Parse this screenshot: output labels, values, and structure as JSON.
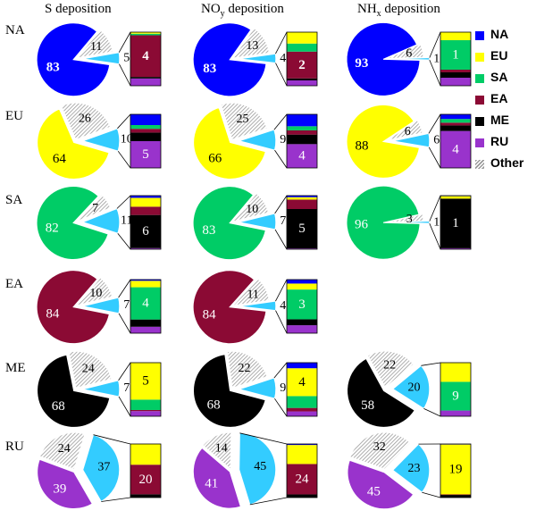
{
  "chart_data": {
    "type": "pie",
    "columns": [
      {
        "label": "S deposition",
        "main": "S",
        "sub": ""
      },
      {
        "label": "NOy deposition",
        "main": "NO",
        "sub": "y",
        "suffix": " deposition"
      },
      {
        "label": "NHx deposition",
        "main": "NH",
        "sub": "x",
        "suffix": " deposition"
      }
    ],
    "rows": [
      "NA",
      "EU",
      "SA",
      "EA",
      "ME",
      "RU"
    ],
    "colors": {
      "NA": "#0000ff",
      "EU": "#ffff00",
      "SA": "#00cc66",
      "EA": "#8b0a34",
      "ME": "#000000",
      "RU": "#9933cc",
      "Other": "hatched-gray",
      "Transport": "#33ccff"
    },
    "legend": {
      "placement": "right",
      "entries": [
        {
          "key": "NA",
          "label": "NA"
        },
        {
          "key": "EU",
          "label": "EU"
        },
        {
          "key": "SA",
          "label": "SA"
        },
        {
          "key": "EA",
          "label": "EA"
        },
        {
          "key": "ME",
          "label": "ME"
        },
        {
          "key": "RU",
          "label": "RU"
        },
        {
          "key": "Other",
          "label": "Other"
        }
      ]
    },
    "panels": [
      {
        "row": "NA",
        "col": 0,
        "domestic": 83,
        "other": 11,
        "transport": 5,
        "breakdown": [
          {
            "k": "RU",
            "v": 0.7
          },
          {
            "k": "ME",
            "v": 0.15
          },
          {
            "k": "EA",
            "v": 4
          },
          {
            "k": "SA",
            "v": 0.15
          },
          {
            "k": "EU",
            "v": 0.15
          }
        ],
        "bar_label": "4"
      },
      {
        "row": "NA",
        "col": 1,
        "domestic": 83,
        "other": 13,
        "transport": 4,
        "breakdown": [
          {
            "k": "RU",
            "v": 0.4
          },
          {
            "k": "ME",
            "v": 0.15
          },
          {
            "k": "EA",
            "v": 2
          },
          {
            "k": "SA",
            "v": 0.6
          },
          {
            "k": "EU",
            "v": 0.85
          }
        ],
        "bar_label": "2"
      },
      {
        "row": "NA",
        "col": 2,
        "domestic": 93,
        "other": 6,
        "transport": 1,
        "breakdown": [
          {
            "k": "RU",
            "v": 0.15
          },
          {
            "k": "ME",
            "v": 0.1
          },
          {
            "k": "EA",
            "v": 0.05
          },
          {
            "k": "SA",
            "v": 0.55
          },
          {
            "k": "EU",
            "v": 0.15
          }
        ],
        "bar_label": "1"
      },
      {
        "row": "EU",
        "col": 0,
        "domestic": 64,
        "other": 26,
        "transport": 10,
        "breakdown": [
          {
            "k": "RU",
            "v": 5
          },
          {
            "k": "ME",
            "v": 1.6
          },
          {
            "k": "EA",
            "v": 0.7
          },
          {
            "k": "SA",
            "v": 0.7
          },
          {
            "k": "NA",
            "v": 2
          }
        ],
        "bar_label": "5"
      },
      {
        "row": "EU",
        "col": 1,
        "domestic": 66,
        "other": 25,
        "transport": 9,
        "breakdown": [
          {
            "k": "RU",
            "v": 4
          },
          {
            "k": "ME",
            "v": 1.6
          },
          {
            "k": "EA",
            "v": 0.7
          },
          {
            "k": "SA",
            "v": 0.7
          },
          {
            "k": "NA",
            "v": 2
          }
        ],
        "bar_label": "4"
      },
      {
        "row": "EU",
        "col": 2,
        "domestic": 88,
        "other": 6,
        "transport": 6,
        "breakdown": [
          {
            "k": "RU",
            "v": 4
          },
          {
            "k": "ME",
            "v": 0.6
          },
          {
            "k": "EA",
            "v": 0.3
          },
          {
            "k": "SA",
            "v": 0.4
          },
          {
            "k": "NA",
            "v": 0.5
          }
        ],
        "bar_label": "4"
      },
      {
        "row": "SA",
        "col": 0,
        "domestic": 82,
        "other": 7,
        "transport": 11,
        "breakdown": [
          {
            "k": "RU",
            "v": 0.2
          },
          {
            "k": "ME",
            "v": 6
          },
          {
            "k": "EA",
            "v": 1.5
          },
          {
            "k": "EU",
            "v": 1.6
          },
          {
            "k": "NA",
            "v": 0.4
          }
        ],
        "bar_label": "6"
      },
      {
        "row": "SA",
        "col": 1,
        "domestic": 83,
        "other": 10,
        "transport": 7,
        "breakdown": [
          {
            "k": "RU",
            "v": 0.1
          },
          {
            "k": "ME",
            "v": 5
          },
          {
            "k": "EA",
            "v": 1.2
          },
          {
            "k": "EU",
            "v": 0.3
          },
          {
            "k": "NA",
            "v": 0.2
          }
        ],
        "bar_label": "5"
      },
      {
        "row": "SA",
        "col": 2,
        "domestic": 96,
        "other": 3,
        "transport": 1,
        "breakdown": [
          {
            "k": "RU",
            "v": 0.02
          },
          {
            "k": "ME",
            "v": 1
          },
          {
            "k": "EU",
            "v": 0.05
          },
          {
            "k": "NA",
            "v": 0.01
          }
        ],
        "bar_label": "1"
      },
      {
        "row": "EA",
        "col": 0,
        "domestic": 84,
        "other": 10,
        "transport": 7,
        "breakdown": [
          {
            "k": "RU",
            "v": 0.8
          },
          {
            "k": "ME",
            "v": 0.9
          },
          {
            "k": "SA",
            "v": 4
          },
          {
            "k": "EU",
            "v": 0.8
          },
          {
            "k": "NA",
            "v": 0.15
          }
        ],
        "bar_label": "4"
      },
      {
        "row": "EA",
        "col": 1,
        "domestic": 84,
        "other": 11,
        "transport": 4,
        "breakdown": [
          {
            "k": "RU",
            "v": 0.8
          },
          {
            "k": "ME",
            "v": 0.6
          },
          {
            "k": "SA",
            "v": 3
          },
          {
            "k": "EU",
            "v": 0.6
          },
          {
            "k": "NA",
            "v": 0.4
          }
        ],
        "bar_label": "3"
      },
      {
        "row": "ME",
        "col": 0,
        "domestic": 68,
        "other": 24,
        "transport": 7,
        "breakdown": [
          {
            "k": "RU",
            "v": 0.7
          },
          {
            "k": "EA",
            "v": 0.15
          },
          {
            "k": "SA",
            "v": 1.4
          },
          {
            "k": "EU",
            "v": 5
          }
        ],
        "bar_label": "5"
      },
      {
        "row": "ME",
        "col": 1,
        "domestic": 68,
        "other": 22,
        "transport": 9,
        "breakdown": [
          {
            "k": "RU",
            "v": 0.7
          },
          {
            "k": "EA",
            "v": 0.5
          },
          {
            "k": "SA",
            "v": 1.7
          },
          {
            "k": "EU",
            "v": 4
          },
          {
            "k": "NA",
            "v": 0.8
          }
        ],
        "bar_label": "4"
      },
      {
        "row": "ME",
        "col": 2,
        "domestic": 58,
        "other": 22,
        "transport": 20,
        "breakdown": [
          {
            "k": "RU",
            "v": 1.8
          },
          {
            "k": "SA",
            "v": 9
          },
          {
            "k": "EU",
            "v": 6
          }
        ],
        "bar_label": "9"
      },
      {
        "row": "RU",
        "col": 0,
        "domestic": 39,
        "other": 24,
        "transport": 37,
        "breakdown": [
          {
            "k": "ME",
            "v": 2.2
          },
          {
            "k": "EA",
            "v": 20
          },
          {
            "k": "EU",
            "v": 14
          }
        ],
        "bar_label": "20"
      },
      {
        "row": "RU",
        "col": 1,
        "domestic": 41,
        "other": 14,
        "transport": 45,
        "breakdown": [
          {
            "k": "ME",
            "v": 2.5
          },
          {
            "k": "EA",
            "v": 24
          },
          {
            "k": "EU",
            "v": 15
          },
          {
            "k": "NA",
            "v": 0.8
          }
        ],
        "bar_label": "24"
      },
      {
        "row": "RU",
        "col": 2,
        "domestic": 45,
        "other": 32,
        "transport": 23,
        "breakdown": [
          {
            "k": "ME",
            "v": 1
          },
          {
            "k": "EA",
            "v": 0.2
          },
          {
            "k": "EU",
            "v": 19
          },
          {
            "k": "NA",
            "v": 0.2
          }
        ],
        "bar_label": "19"
      }
    ]
  }
}
